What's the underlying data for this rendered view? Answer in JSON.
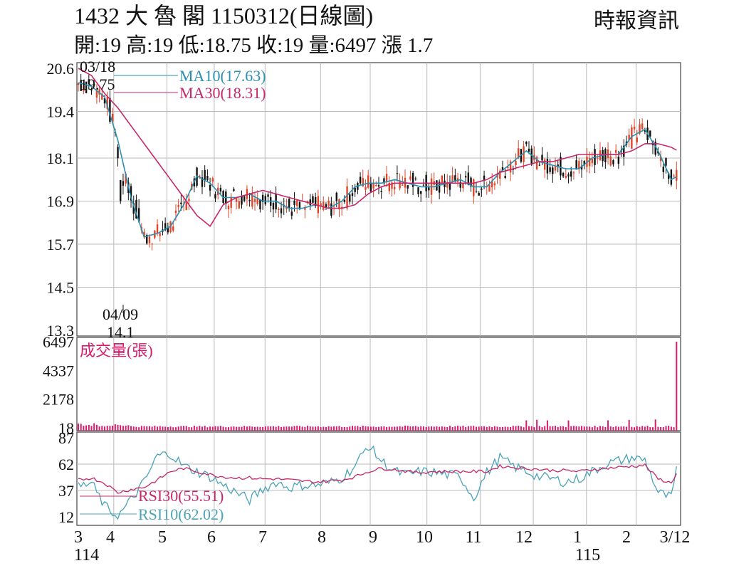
{
  "header": {
    "title": "1432 大 魯 閣 1150312(日線圖)",
    "source": "時報資訊",
    "summary": "開:19 高:19 低:18.75 收:19 量:6497 漲 1.7"
  },
  "colors": {
    "up": "#e0452a",
    "down": "#111111",
    "ma10": "#2a8fb0",
    "ma30": "#c8286a",
    "volume": "#d81b6a",
    "rsi30": "#c8286a",
    "rsi10": "#4aa3b8",
    "grid": "#bbbbbb"
  },
  "chart_data": [
    {
      "type": "candlestick",
      "id": "price",
      "ylim": [
        13.3,
        20.6
      ],
      "yticks": [
        "20.6",
        "19.4",
        "18.1",
        "16.9",
        "15.7",
        "14.5",
        "13.3"
      ],
      "legend": [
        "MA10(17.63)",
        "MA30(18.31)"
      ],
      "annotations": [
        {
          "date": "03/18",
          "value": "19.75"
        },
        {
          "date": "04/09",
          "value": "14.1"
        }
      ],
      "ma10_anchors": [
        [
          0,
          20.2
        ],
        [
          10,
          20.1
        ],
        [
          20,
          19.8
        ],
        [
          30,
          18.6
        ],
        [
          40,
          17.0
        ],
        [
          50,
          15.9
        ],
        [
          60,
          16.0
        ],
        [
          70,
          16.2
        ],
        [
          80,
          16.8
        ],
        [
          90,
          17.6
        ],
        [
          100,
          17.4
        ],
        [
          110,
          17.0
        ],
        [
          120,
          17.0
        ],
        [
          130,
          17.1
        ],
        [
          140,
          16.9
        ],
        [
          150,
          16.9
        ],
        [
          160,
          16.7
        ],
        [
          170,
          16.7
        ],
        [
          180,
          16.8
        ],
        [
          190,
          16.7
        ],
        [
          200,
          16.9
        ],
        [
          210,
          17.3
        ],
        [
          220,
          17.4
        ],
        [
          230,
          17.4
        ],
        [
          240,
          17.5
        ],
        [
          250,
          17.4
        ],
        [
          260,
          17.3
        ],
        [
          270,
          17.3
        ],
        [
          280,
          17.4
        ],
        [
          290,
          17.5
        ],
        [
          300,
          17.3
        ],
        [
          310,
          17.3
        ],
        [
          320,
          17.7
        ],
        [
          330,
          18.0
        ],
        [
          340,
          18.3
        ],
        [
          350,
          18.0
        ],
        [
          360,
          17.9
        ],
        [
          370,
          17.8
        ],
        [
          380,
          17.8
        ],
        [
          390,
          18.1
        ],
        [
          400,
          18.2
        ],
        [
          410,
          18.2
        ],
        [
          420,
          18.7
        ],
        [
          430,
          18.9
        ],
        [
          440,
          18.3
        ],
        [
          450,
          17.5
        ],
        [
          455,
          17.6
        ]
      ],
      "ma30_anchors": [
        [
          0,
          20.6
        ],
        [
          10,
          20.4
        ],
        [
          20,
          19.9
        ],
        [
          30,
          19.5
        ],
        [
          40,
          19.0
        ],
        [
          60,
          18.0
        ],
        [
          80,
          17.0
        ],
        [
          90,
          16.5
        ],
        [
          100,
          16.2
        ],
        [
          110,
          16.8
        ],
        [
          120,
          17.0
        ],
        [
          130,
          17.1
        ],
        [
          140,
          17.2
        ],
        [
          150,
          17.1
        ],
        [
          160,
          17.0
        ],
        [
          170,
          16.9
        ],
        [
          180,
          16.8
        ],
        [
          190,
          16.7
        ],
        [
          200,
          16.7
        ],
        [
          210,
          16.8
        ],
        [
          220,
          17.1
        ],
        [
          230,
          17.3
        ],
        [
          240,
          17.4
        ],
        [
          250,
          17.4
        ],
        [
          260,
          17.4
        ],
        [
          270,
          17.4
        ],
        [
          280,
          17.4
        ],
        [
          290,
          17.4
        ],
        [
          300,
          17.4
        ],
        [
          310,
          17.5
        ],
        [
          320,
          17.7
        ],
        [
          330,
          17.8
        ],
        [
          340,
          17.9
        ],
        [
          350,
          18.0
        ],
        [
          360,
          18.0
        ],
        [
          370,
          18.1
        ],
        [
          380,
          18.2
        ],
        [
          390,
          18.2
        ],
        [
          400,
          18.2
        ],
        [
          410,
          18.2
        ],
        [
          420,
          18.3
        ],
        [
          430,
          18.5
        ],
        [
          440,
          18.5
        ],
        [
          450,
          18.4
        ],
        [
          455,
          18.3
        ]
      ]
    },
    {
      "type": "bar",
      "id": "volume",
      "title": "成交量(張)",
      "ylim": [
        18,
        6497
      ],
      "yticks": [
        "6497",
        "4337",
        "2178",
        "18"
      ],
      "last_value": 6497
    },
    {
      "type": "line",
      "id": "rsi",
      "ylim": [
        12,
        87
      ],
      "yticks": [
        "87",
        "62",
        "37",
        "12"
      ],
      "legend": [
        "RSI30(55.51)",
        "RSI10(62.02)"
      ],
      "rsi30_anchors": [
        [
          0,
          47
        ],
        [
          10,
          49
        ],
        [
          20,
          44
        ],
        [
          30,
          35
        ],
        [
          40,
          38
        ],
        [
          50,
          40
        ],
        [
          60,
          47
        ],
        [
          70,
          55
        ],
        [
          80,
          58
        ],
        [
          90,
          55
        ],
        [
          100,
          52
        ],
        [
          110,
          50
        ],
        [
          120,
          49
        ],
        [
          130,
          49
        ],
        [
          140,
          48
        ],
        [
          150,
          48
        ],
        [
          160,
          47
        ],
        [
          170,
          46
        ],
        [
          180,
          45
        ],
        [
          190,
          46
        ],
        [
          200,
          47
        ],
        [
          210,
          50
        ],
        [
          220,
          55
        ],
        [
          230,
          58
        ],
        [
          240,
          57
        ],
        [
          250,
          55
        ],
        [
          260,
          54
        ],
        [
          270,
          55
        ],
        [
          280,
          55
        ],
        [
          290,
          55
        ],
        [
          300,
          55
        ],
        [
          310,
          55
        ],
        [
          320,
          60
        ],
        [
          330,
          59
        ],
        [
          340,
          58
        ],
        [
          350,
          57
        ],
        [
          360,
          56
        ],
        [
          370,
          56
        ],
        [
          380,
          55
        ],
        [
          390,
          57
        ],
        [
          400,
          58
        ],
        [
          410,
          59
        ],
        [
          420,
          60
        ],
        [
          430,
          61
        ],
        [
          440,
          48
        ],
        [
          450,
          44
        ],
        [
          455,
          56
        ]
      ],
      "rsi10_anchors": [
        [
          0,
          40
        ],
        [
          10,
          44
        ],
        [
          20,
          22
        ],
        [
          30,
          12
        ],
        [
          40,
          28
        ],
        [
          50,
          45
        ],
        [
          60,
          70
        ],
        [
          70,
          72
        ],
        [
          80,
          60
        ],
        [
          90,
          55
        ],
        [
          100,
          50
        ],
        [
          110,
          42
        ],
        [
          120,
          35
        ],
        [
          130,
          28
        ],
        [
          140,
          38
        ],
        [
          150,
          45
        ],
        [
          160,
          40
        ],
        [
          170,
          42
        ],
        [
          180,
          42
        ],
        [
          190,
          44
        ],
        [
          200,
          49
        ],
        [
          210,
          60
        ],
        [
          220,
          80
        ],
        [
          230,
          65
        ],
        [
          240,
          55
        ],
        [
          250,
          52
        ],
        [
          260,
          55
        ],
        [
          270,
          54
        ],
        [
          280,
          52
        ],
        [
          290,
          50
        ],
        [
          300,
          30
        ],
        [
          310,
          54
        ],
        [
          320,
          68
        ],
        [
          330,
          60
        ],
        [
          340,
          55
        ],
        [
          350,
          50
        ],
        [
          360,
          48
        ],
        [
          370,
          45
        ],
        [
          380,
          48
        ],
        [
          390,
          55
        ],
        [
          400,
          62
        ],
        [
          410,
          65
        ],
        [
          420,
          68
        ],
        [
          430,
          66
        ],
        [
          440,
          35
        ],
        [
          450,
          30
        ],
        [
          455,
          62
        ]
      ]
    }
  ],
  "xaxis": {
    "labels": [
      {
        "label": "3",
        "pos": 0
      },
      {
        "label": "4",
        "pos": 30
      },
      {
        "label": "5",
        "pos": 75
      },
      {
        "label": "6",
        "pos": 115
      },
      {
        "label": "7",
        "pos": 158
      },
      {
        "label": "8",
        "pos": 205
      },
      {
        "label": "9",
        "pos": 247
      },
      {
        "label": "10",
        "pos": 295
      },
      {
        "label": "11",
        "pos": 340
      },
      {
        "label": "12",
        "pos": 385
      },
      {
        "label": "1",
        "pos": 430
      },
      {
        "label": "2",
        "pos": 472
      },
      {
        "label": "3/12",
        "pos": 508
      }
    ],
    "year_labels": [
      {
        "label": "114",
        "pos": 0
      },
      {
        "label": "115",
        "pos": 430
      }
    ]
  }
}
